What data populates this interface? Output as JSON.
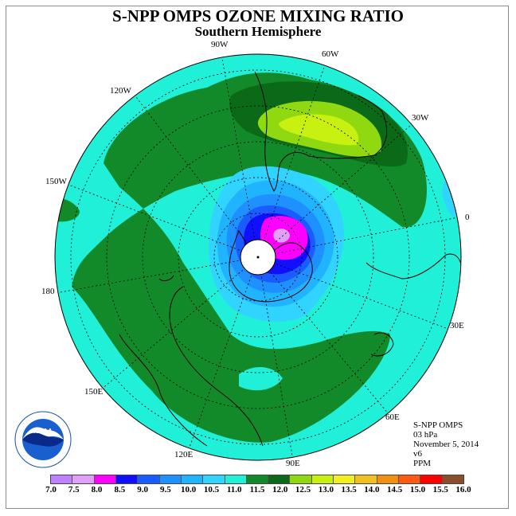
{
  "title": "S-NPP OMPS OZONE MIXING RATIO",
  "subtitle": "Southern Hemisphere",
  "longitude_labels": [
    "90W",
    "60W",
    "120W",
    "30W",
    "150W",
    "0",
    "180",
    "30E",
    "150E",
    "60E",
    "120E",
    "90E"
  ],
  "info": {
    "instrument": "S-NPP OMPS",
    "pressure": "03 hPa",
    "date": "November 5, 2014",
    "version": "v6",
    "units": "PPM"
  },
  "logo_text": "NOAA",
  "colorbar": {
    "ticks": [
      "7.0",
      "7.5",
      "8.0",
      "8.5",
      "9.0",
      "9.5",
      "10.0",
      "10.5",
      "11.0",
      "11.5",
      "12.0",
      "12.5",
      "13.0",
      "13.5",
      "14.0",
      "14.5",
      "15.0",
      "15.5",
      "16.0"
    ],
    "colors": [
      "#c080ff",
      "#e0a0f8",
      "#ff00ff",
      "#1010ff",
      "#1a5cff",
      "#1e90ff",
      "#20b4ff",
      "#30d4ff",
      "#20f0d8",
      "#128a2a",
      "#0a6a18",
      "#90d810",
      "#c8f010",
      "#f0f020",
      "#f0c020",
      "#f09010",
      "#ff5a10",
      "#ff0000",
      "#8b4e2c"
    ]
  }
}
